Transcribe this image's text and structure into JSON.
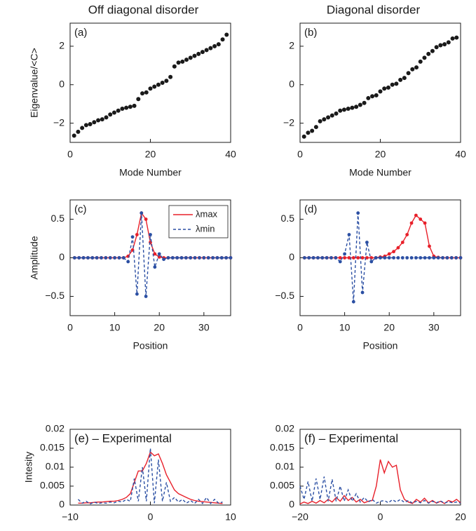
{
  "chart_data": [
    {
      "type": "scatter",
      "title": "Off diagonal disorder",
      "panel_label": "(a)",
      "xlabel": "Mode Number",
      "ylabel": "Eigenvalue/<C>",
      "color": "#1a1a1a",
      "x": [
        1,
        2,
        3,
        4,
        5,
        6,
        7,
        8,
        9,
        10,
        11,
        12,
        13,
        14,
        15,
        16,
        17,
        18,
        19,
        20,
        21,
        22,
        23,
        24,
        25,
        26,
        27,
        28,
        29,
        30,
        31,
        32,
        33,
        34,
        35,
        36,
        37,
        38,
        39
      ],
      "values": [
        -2.65,
        -2.45,
        -2.25,
        -2.1,
        -2.05,
        -1.95,
        -1.85,
        -1.8,
        -1.7,
        -1.55,
        -1.45,
        -1.35,
        -1.25,
        -1.2,
        -1.15,
        -1.1,
        -0.75,
        -0.45,
        -0.4,
        -0.2,
        -0.1,
        0,
        0.1,
        0.2,
        0.4,
        0.95,
        1.15,
        1.2,
        1.3,
        1.4,
        1.5,
        1.6,
        1.7,
        1.8,
        1.9,
        2.0,
        2.1,
        2.35,
        2.6
      ],
      "xlim": [
        0,
        40
      ],
      "ylim": [
        -3,
        3.2
      ],
      "xticks": [
        0,
        20,
        40
      ],
      "yticks": [
        {
          "value": -2,
          "label": "−2"
        },
        0,
        2
      ]
    },
    {
      "type": "scatter",
      "title": "Diagonal disorder",
      "panel_label": "(b)",
      "xlabel": "Mode Number",
      "color": "#1a1a1a",
      "x": [
        1,
        2,
        3,
        4,
        5,
        6,
        7,
        8,
        9,
        10,
        11,
        12,
        13,
        14,
        15,
        16,
        17,
        18,
        19,
        20,
        21,
        22,
        23,
        24,
        25,
        26,
        27,
        28,
        29,
        30,
        31,
        32,
        33,
        34,
        35,
        36,
        37,
        38,
        39
      ],
      "values": [
        -2.7,
        -2.5,
        -2.4,
        -2.2,
        -1.9,
        -1.8,
        -1.7,
        -1.6,
        -1.5,
        -1.35,
        -1.3,
        -1.25,
        -1.2,
        -1.15,
        -1.05,
        -0.95,
        -0.7,
        -0.6,
        -0.55,
        -0.35,
        -0.2,
        -0.15,
        0,
        0.05,
        0.25,
        0.35,
        0.6,
        0.8,
        0.9,
        1.2,
        1.4,
        1.6,
        1.75,
        1.95,
        2.05,
        2.1,
        2.2,
        2.4,
        2.45
      ],
      "xlim": [
        0,
        40
      ],
      "ylim": [
        -3,
        3.2
      ],
      "xticks": [
        0,
        20,
        40
      ],
      "yticks": [
        {
          "value": -2,
          "label": "−2"
        },
        0,
        2
      ]
    },
    {
      "type": "line",
      "panel_label": "(c)",
      "xlabel": "Position",
      "ylabel": "Amplitude",
      "markers": true,
      "legend": "upper right",
      "x": [
        1,
        2,
        3,
        4,
        5,
        6,
        7,
        8,
        9,
        10,
        11,
        12,
        13,
        14,
        15,
        16,
        17,
        18,
        19,
        20,
        21,
        22,
        23,
        24,
        25,
        26,
        27,
        28,
        29,
        30,
        31,
        32,
        33,
        34,
        35,
        36
      ],
      "series": [
        {
          "name": "λmax",
          "color": "#e8202a",
          "dash": "solid",
          "values": [
            0,
            0,
            0,
            0,
            0,
            0,
            0,
            0,
            0,
            0,
            0,
            0,
            0.02,
            0.1,
            0.3,
            0.58,
            0.5,
            0.2,
            0.05,
            0.01,
            0,
            0,
            0,
            0,
            0,
            0,
            0,
            0,
            0,
            0,
            0,
            0,
            0,
            0,
            0,
            0
          ]
        },
        {
          "name": "λmin",
          "color": "#2b4fa3",
          "dash": "dashed",
          "values": [
            0,
            0,
            0,
            0,
            0,
            0,
            0,
            0,
            0,
            0,
            0,
            0,
            -0.05,
            0.27,
            -0.47,
            0.58,
            -0.5,
            0.3,
            -0.12,
            0.05,
            -0.02,
            0,
            0,
            0,
            0,
            0,
            0,
            0,
            0,
            0,
            0,
            0,
            0,
            0,
            0,
            0
          ]
        }
      ],
      "xlim": [
        0,
        36
      ],
      "ylim": [
        -0.75,
        0.75
      ],
      "xticks": [
        0,
        10,
        20,
        30
      ],
      "yticks": [
        {
          "value": -0.5,
          "label": "−0.5"
        },
        0,
        0.5
      ]
    },
    {
      "type": "line",
      "panel_label": "(d)",
      "xlabel": "Position",
      "markers": true,
      "x": [
        1,
        2,
        3,
        4,
        5,
        6,
        7,
        8,
        9,
        10,
        11,
        12,
        13,
        14,
        15,
        16,
        17,
        18,
        19,
        20,
        21,
        22,
        23,
        24,
        25,
        26,
        27,
        28,
        29,
        30,
        31,
        32,
        33,
        34,
        35,
        36
      ],
      "series": [
        {
          "color": "#e8202a",
          "dash": "solid",
          "values": [
            0,
            0,
            0,
            0,
            0,
            0,
            0,
            0,
            0,
            0,
            0,
            0,
            0,
            0,
            0,
            0,
            0,
            0.01,
            0.02,
            0.05,
            0.08,
            0.13,
            0.2,
            0.3,
            0.45,
            0.55,
            0.5,
            0.45,
            0.15,
            0.02,
            0.005,
            0,
            0,
            0,
            0,
            0
          ]
        },
        {
          "color": "#2b4fa3",
          "dash": "dashed",
          "values": [
            0,
            0,
            0,
            0,
            0,
            0,
            0,
            0,
            -0.05,
            0.05,
            0.3,
            -0.57,
            0.58,
            -0.45,
            0.2,
            -0.05,
            0,
            0,
            0,
            0,
            0,
            0,
            0,
            0,
            0,
            0,
            0,
            0,
            0,
            0,
            0,
            0,
            0,
            0,
            0,
            0
          ]
        }
      ],
      "xlim": [
        0,
        36
      ],
      "ylim": [
        -0.75,
        0.75
      ],
      "xticks": [
        0,
        10,
        20,
        30
      ],
      "yticks": [
        {
          "value": -0.5,
          "label": "−0.5"
        },
        0,
        0.5
      ]
    },
    {
      "type": "line",
      "panel_label": "(e) – Experimental",
      "xlabel": "Position",
      "ylabel": "Intesity",
      "markers": false,
      "x": [
        -9,
        -8.5,
        -8,
        -7.5,
        -7,
        -6.5,
        -6,
        -5.5,
        -5,
        -4.5,
        -4,
        -3.5,
        -3,
        -2.5,
        -2,
        -1.5,
        -1,
        -0.5,
        0,
        0.5,
        1,
        1.5,
        2,
        2.5,
        3,
        3.5,
        4,
        4.5,
        5,
        5.5,
        6,
        6.5,
        7,
        7.5,
        8,
        8.5,
        9
      ],
      "series": [
        {
          "color": "#e8202a",
          "dash": "solid",
          "values": [
            0.0005,
            0.0005,
            0.0006,
            0.0006,
            0.0007,
            0.0008,
            0.0008,
            0.0009,
            0.001,
            0.001,
            0.0012,
            0.0015,
            0.002,
            0.003,
            0.006,
            0.009,
            0.009,
            0.011,
            0.014,
            0.013,
            0.0135,
            0.011,
            0.008,
            0.006,
            0.004,
            0.003,
            0.0025,
            0.002,
            0.0015,
            0.0012,
            0.001,
            0.0009,
            0.0008,
            0.0007,
            0.0006,
            0.0005,
            0.0004
          ]
        },
        {
          "color": "#2b4fa3",
          "dash": "dashed",
          "values": [
            0.0015,
            0.0005,
            0.001,
            0.0003,
            0.0008,
            0.0004,
            0.0006,
            0.0005,
            0.0008,
            0.0006,
            0.001,
            0.0008,
            0.0015,
            0.001,
            0.007,
            0.001,
            0.01,
            0.001,
            0.015,
            0.0005,
            0.012,
            0.001,
            0.006,
            0.001,
            0.002,
            0.0008,
            0.0015,
            0.0005,
            0.0012,
            0.0004,
            0.0015,
            0.0004,
            0.002,
            0.0004,
            0.0015,
            0.0005,
            0.0008
          ]
        }
      ],
      "xlim": [
        -10,
        10
      ],
      "ylim": [
        0,
        0.02
      ],
      "xticks": [
        {
          "value": -10,
          "label": "−10"
        },
        0,
        10
      ],
      "yticks": [
        0,
        0.005,
        0.01,
        0.015,
        0.02
      ]
    },
    {
      "type": "line",
      "panel_label": "(f) – Experimental",
      "xlabel": "Position",
      "markers": false,
      "x": [
        -20,
        -19,
        -18,
        -17,
        -16,
        -15,
        -14,
        -13,
        -12,
        -11,
        -10,
        -9,
        -8,
        -7,
        -6,
        -5,
        -4,
        -3,
        -2,
        -1,
        0,
        1,
        2,
        3,
        4,
        5,
        6,
        7,
        8,
        9,
        10,
        11,
        12,
        13,
        14,
        15,
        16,
        17,
        18,
        19,
        20
      ],
      "series": [
        {
          "color": "#e8202a",
          "dash": "solid",
          "values": [
            0.0003,
            0.0008,
            0.0004,
            0.001,
            0.0005,
            0.0012,
            0.0006,
            0.0015,
            0.0008,
            0.002,
            0.001,
            0.0025,
            0.0012,
            0.002,
            0.0008,
            0.0015,
            0.0006,
            0.001,
            0.0012,
            0.005,
            0.012,
            0.0085,
            0.0115,
            0.01,
            0.0105,
            0.004,
            0.0015,
            0.0008,
            0.0004,
            0.0015,
            0.0008,
            0.0018,
            0.0006,
            0.0012,
            0.0005,
            0.001,
            0.0004,
            0.0012,
            0.0008,
            0.0015,
            0.0006
          ]
        },
        {
          "color": "#2b4fa3",
          "dash": "dashed",
          "values": [
            0.005,
            0.0015,
            0.0062,
            0.001,
            0.007,
            0.0015,
            0.0075,
            0.001,
            0.0068,
            0.001,
            0.005,
            0.001,
            0.004,
            0.001,
            0.003,
            0.0008,
            0.002,
            0.0008,
            0.0015,
            0.0005,
            0.001,
            0.0012,
            0.0006,
            0.0014,
            0.0008,
            0.0015,
            0.0007,
            0.0012,
            0.0005,
            0.001,
            0.0006,
            0.0012,
            0.0005,
            0.001,
            0.0006,
            0.0011,
            0.0005,
            0.0009,
            0.0006,
            0.0008,
            0.0005
          ]
        }
      ],
      "xlim": [
        -20,
        20
      ],
      "ylim": [
        0,
        0.02
      ],
      "xticks": [
        {
          "value": -20,
          "label": "−20"
        },
        0,
        20
      ],
      "yticks": [
        0,
        0.005,
        0.01,
        0.015,
        0.02
      ]
    }
  ]
}
